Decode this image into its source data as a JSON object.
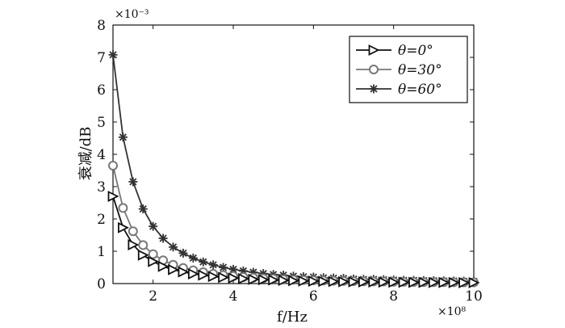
{
  "chart_data": {
    "type": "line",
    "xlabel": "f/Hz",
    "ylabel": "衰减/dB",
    "x_exponent_label": "×10⁸",
    "y_exponent_label": "×10⁻³",
    "x_unit_scale": 100000000,
    "y_unit_scale": 0.001,
    "xlim": [
      1,
      10
    ],
    "ylim": [
      0,
      8
    ],
    "xticks": [
      2,
      4,
      6,
      8,
      10
    ],
    "yticks": [
      0,
      1,
      2,
      3,
      4,
      5,
      6,
      7,
      8
    ],
    "grid": false,
    "legend_position": "top-right",
    "colors": {
      "s0": "#111111",
      "s30": "#777777",
      "s60": "#333333"
    },
    "x": [
      1.0,
      1.25,
      1.5,
      1.75,
      2.0,
      2.25,
      2.5,
      2.75,
      3.0,
      3.25,
      3.5,
      3.75,
      4.0,
      4.25,
      4.5,
      4.75,
      5.0,
      5.25,
      5.5,
      5.75,
      6.0,
      6.25,
      6.5,
      6.75,
      7.0,
      7.25,
      7.5,
      7.75,
      8.0,
      8.25,
      8.5,
      8.75,
      9.0,
      9.25,
      9.5,
      9.75,
      10.0
    ],
    "series": [
      {
        "name": "θ=0°",
        "marker": "triangle-right",
        "values": [
          2.7,
          1.73,
          1.2,
          0.88,
          0.68,
          0.53,
          0.43,
          0.36,
          0.3,
          0.26,
          0.22,
          0.19,
          0.17,
          0.15,
          0.13,
          0.12,
          0.11,
          0.1,
          0.09,
          0.08,
          0.075,
          0.069,
          0.064,
          0.059,
          0.055,
          0.051,
          0.048,
          0.045,
          0.042,
          0.04,
          0.037,
          0.035,
          0.033,
          0.032,
          0.03,
          0.028,
          0.027
        ]
      },
      {
        "name": "θ=30°",
        "marker": "circle",
        "values": [
          3.65,
          2.34,
          1.62,
          1.19,
          0.91,
          0.72,
          0.58,
          0.48,
          0.41,
          0.35,
          0.3,
          0.26,
          0.23,
          0.2,
          0.18,
          0.16,
          0.15,
          0.13,
          0.12,
          0.11,
          0.1,
          0.093,
          0.086,
          0.08,
          0.074,
          0.069,
          0.065,
          0.061,
          0.057,
          0.054,
          0.051,
          0.048,
          0.045,
          0.043,
          0.04,
          0.038,
          0.037
        ]
      },
      {
        "name": "θ=60°",
        "marker": "star",
        "values": [
          7.08,
          4.53,
          3.15,
          2.31,
          1.77,
          1.4,
          1.13,
          0.94,
          0.79,
          0.67,
          0.58,
          0.5,
          0.44,
          0.39,
          0.35,
          0.31,
          0.28,
          0.26,
          0.23,
          0.21,
          0.2,
          0.18,
          0.17,
          0.16,
          0.14,
          0.13,
          0.13,
          0.12,
          0.11,
          0.1,
          0.098,
          0.092,
          0.087,
          0.083,
          0.078,
          0.074,
          0.071
        ]
      }
    ]
  }
}
